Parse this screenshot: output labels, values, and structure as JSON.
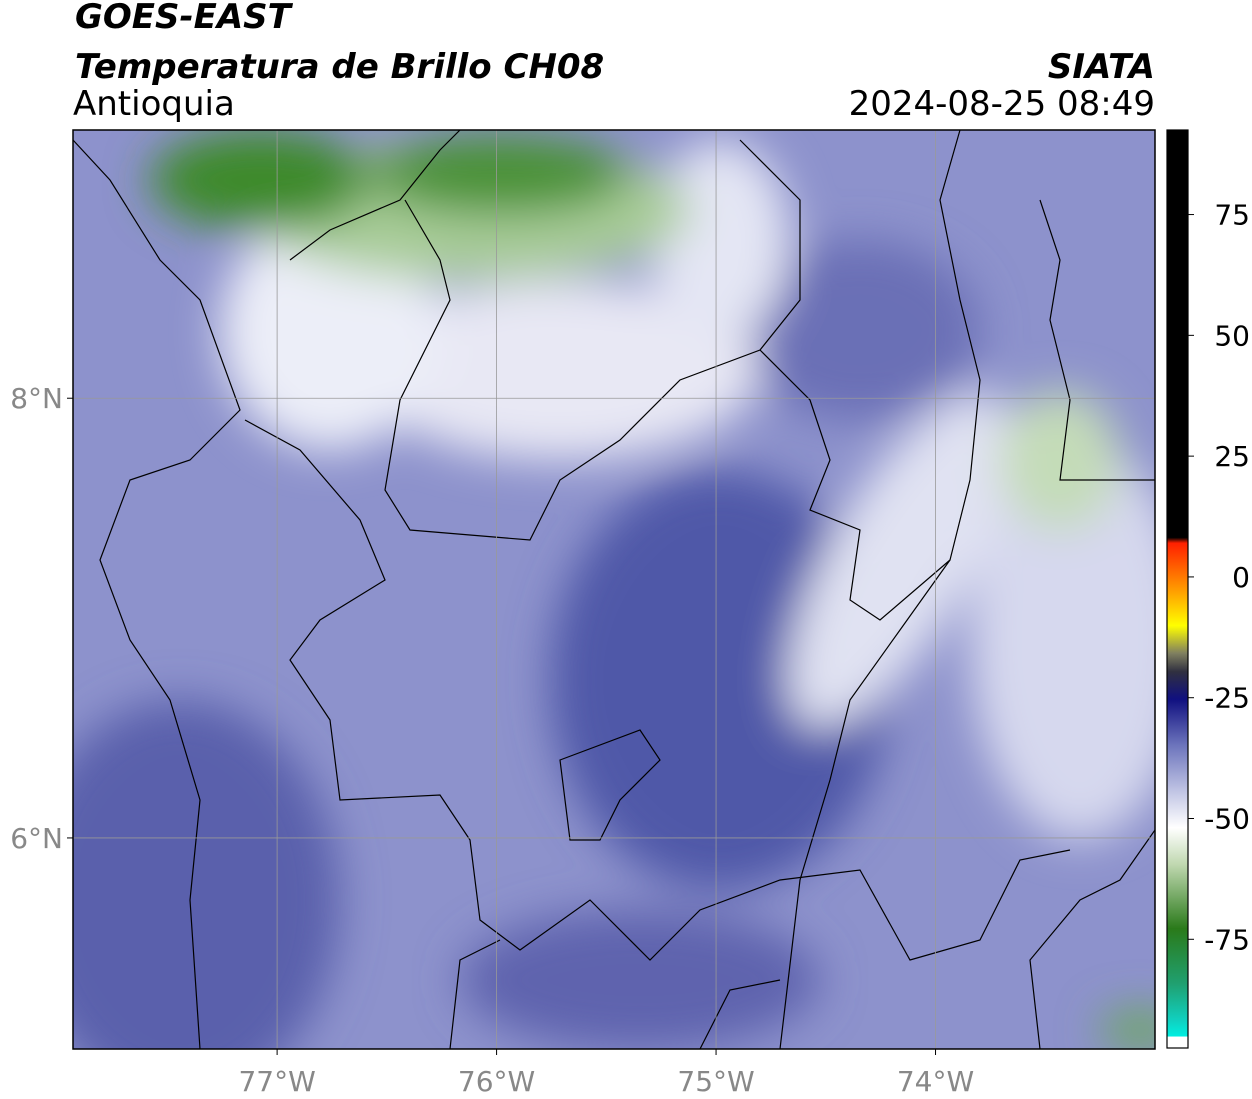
{
  "map": {
    "title": "GOES-EAST",
    "subtitle": "Temperatura de Brillo CH08",
    "region": "Antioquia",
    "source": "SIATA",
    "timestamp": "2024-08-25 08:49",
    "xlim": [
      -77.93,
      -73.0
    ],
    "ylim": [
      5.04,
      9.22
    ],
    "xticks": [
      {
        "value": -77,
        "label": "77°W"
      },
      {
        "value": -76,
        "label": "76°W"
      },
      {
        "value": -75,
        "label": "75°W"
      },
      {
        "value": -74,
        "label": "74°W"
      }
    ],
    "yticks": [
      {
        "value": 6,
        "label": "6°N"
      },
      {
        "value": 8,
        "label": "8°N"
      }
    ],
    "grid": true,
    "colorbar": {
      "lim": [
        -97.5,
        92.5
      ],
      "ticks": [
        -75,
        -50,
        -25,
        0,
        25,
        50,
        75
      ]
    }
  }
}
